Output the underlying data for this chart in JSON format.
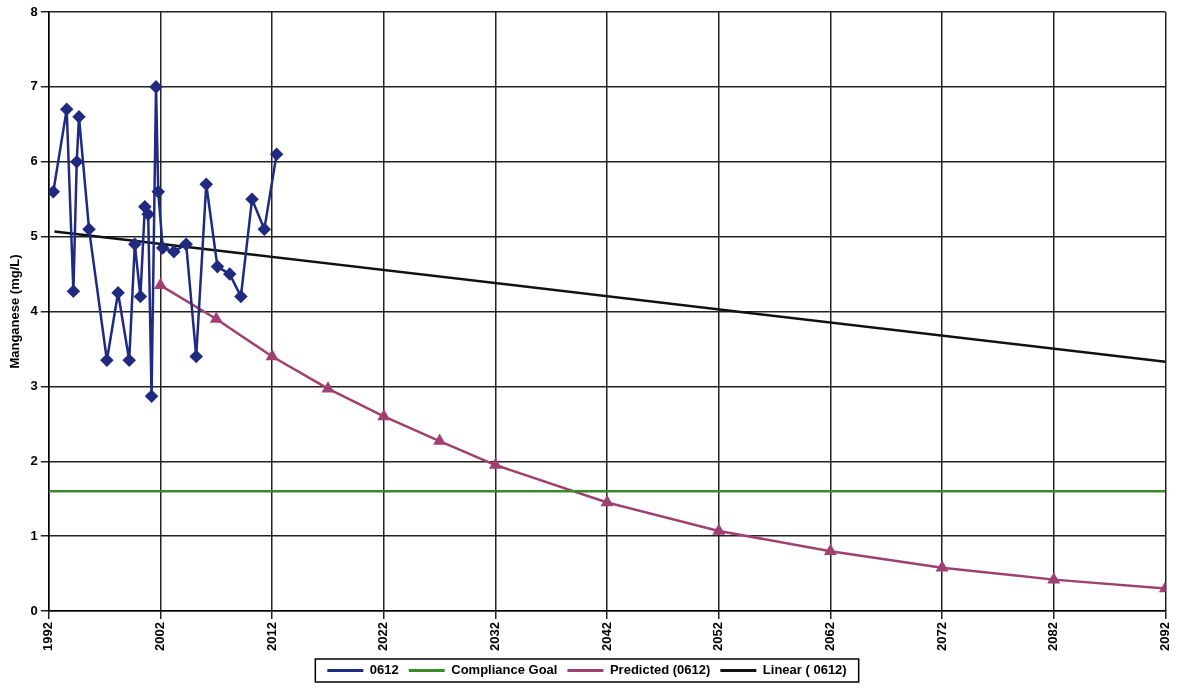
{
  "chart_data": {
    "type": "line",
    "ylabel": "Manganese (mg/L)",
    "xlim": [
      1992,
      2092
    ],
    "xticks": [
      1992,
      2002,
      2012,
      2022,
      2032,
      2042,
      2052,
      2062,
      2072,
      2082,
      2092
    ],
    "ylim": [
      0,
      8
    ],
    "yticks": [
      0,
      1,
      2,
      3,
      4,
      5,
      6,
      7,
      8
    ],
    "grid": true,
    "legend": "bottom",
    "series": [
      {
        "name": "0612",
        "color": "#1f2a80",
        "marker": "diamond",
        "x": [
          1992.4,
          1993.6,
          1994.2,
          1994.5,
          1994.7,
          1995.6,
          1997.2,
          1998.2,
          1999.2,
          1999.7,
          2000.2,
          2000.6,
          2000.9,
          2001.2,
          2001.6,
          2001.8,
          2002.2,
          2003.2,
          2004.3,
          2005.2,
          2006.1,
          2007.1,
          2008.2,
          2009.2,
          2010.2,
          2011.3,
          2012.4
        ],
        "values": [
          5.6,
          6.7,
          4.27,
          6.0,
          6.6,
          5.1,
          3.35,
          4.25,
          3.35,
          4.9,
          4.2,
          5.4,
          5.3,
          2.87,
          7.0,
          5.6,
          4.85,
          4.8,
          4.9,
          3.4,
          5.7,
          4.6,
          4.5,
          4.2,
          5.5,
          5.1,
          6.1
        ]
      },
      {
        "name": "Compliance Goal",
        "color": "#3a8a2a",
        "marker": "none",
        "x": [
          1992,
          2092
        ],
        "values": [
          1.6,
          1.6
        ]
      },
      {
        "name": "Predicted (0612)",
        "color": "#a04070",
        "marker": "triangle",
        "x": [
          2002,
          2007,
          2012,
          2017,
          2022,
          2027,
          2032,
          2042,
          2052,
          2062,
          2072,
          2082,
          2092
        ],
        "values": [
          4.35,
          3.9,
          3.4,
          2.97,
          2.6,
          2.27,
          1.95,
          1.45,
          1.07,
          0.8,
          0.58,
          0.42,
          0.3
        ]
      },
      {
        "name": "Linear ( 0612)",
        "color": "#111111",
        "marker": "none",
        "x": [
          1992.5,
          2092
        ],
        "values": [
          5.07,
          3.33
        ]
      }
    ]
  }
}
